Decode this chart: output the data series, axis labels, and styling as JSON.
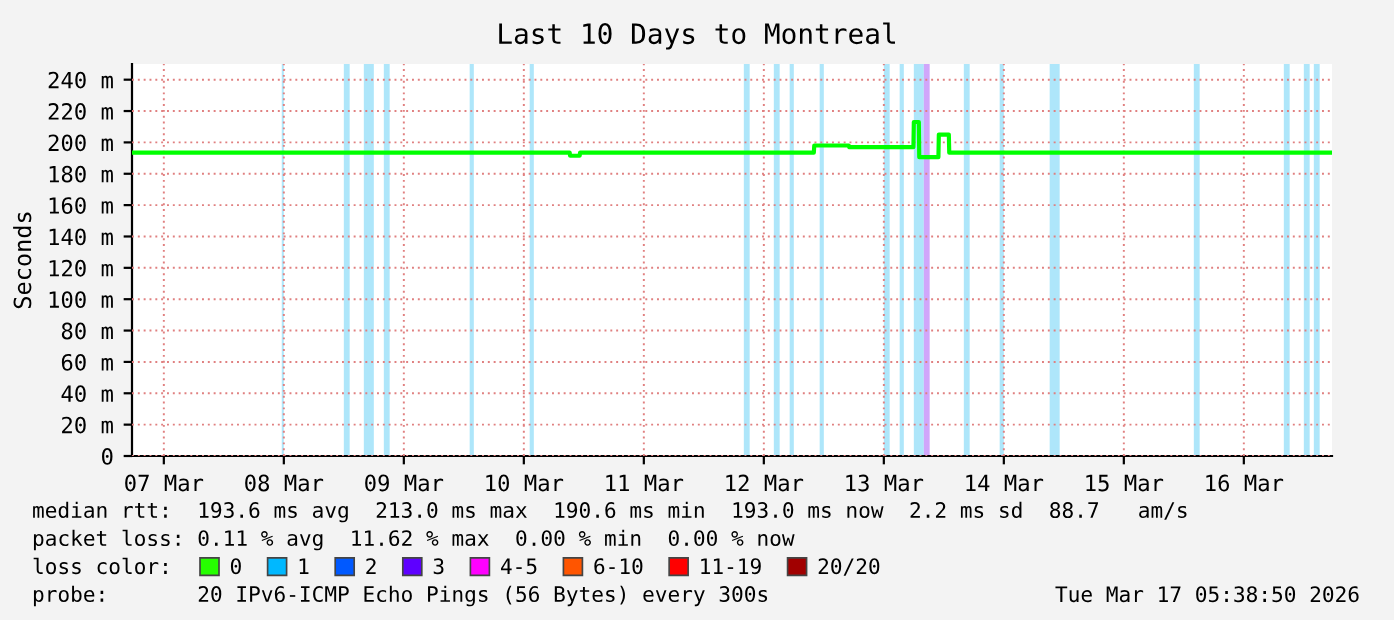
{
  "chart_data": {
    "type": "line",
    "title": "Last 10 Days to Montreal",
    "ylabel": "Seconds",
    "x": [
      "2026-03-07T05:40",
      "2026-03-10T21:10",
      "2026-03-10T21:15",
      "2026-03-10T23:10",
      "2026-03-10T23:15",
      "2026-03-12T22:00",
      "2026-03-12T22:05",
      "2026-03-13T05:00",
      "2026-03-13T05:05",
      "2026-03-13T17:55",
      "2026-03-13T18:00",
      "2026-03-13T19:00",
      "2026-03-13T19:05",
      "2026-03-13T22:55",
      "2026-03-13T23:00",
      "2026-03-14T01:00",
      "2026-03-14T01:05",
      "2026-03-17T05:35"
    ],
    "series": [
      {
        "color": "#00ff00",
        "values": [
          193.5,
          193.5,
          191.5,
          191.5,
          193.5,
          193.5,
          198,
          198,
          197,
          197,
          213,
          213,
          190.6,
          190.6,
          205,
          205,
          193.5,
          193.5
        ]
      },
      {
        "name": "0",
        "color": "#26ff00",
        "values": [
          null,
          null,
          null,
          null,
          null,
          null,
          null,
          null,
          null,
          null,
          null,
          null,
          null,
          null,
          null,
          null,
          null,
          null
        ]
      },
      {
        "name": "1",
        "color": "#00b8ff",
        "values": [
          null,
          null,
          null,
          null,
          null,
          null,
          null,
          null,
          null,
          null,
          null,
          null,
          null,
          null,
          null,
          null,
          null,
          null
        ]
      },
      {
        "name": "2",
        "color": "#0059ff",
        "values": [
          null,
          null,
          null,
          null,
          null,
          null,
          null,
          null,
          null,
          null,
          null,
          null,
          null,
          null,
          null,
          null,
          null,
          null
        ]
      },
      {
        "name": "3",
        "color": "#5e00ff",
        "values": [
          null,
          null,
          null,
          null,
          null,
          null,
          null,
          null,
          null,
          null,
          null,
          null,
          null,
          null,
          null,
          null,
          null,
          null
        ]
      },
      {
        "name": "4-5",
        "color": "#ff00ff",
        "values": [
          null,
          null,
          null,
          null,
          null,
          null,
          null,
          null,
          null,
          null,
          null,
          null,
          null,
          null,
          null,
          null,
          null,
          null
        ]
      },
      {
        "name": "6-10",
        "color": "#ff5500",
        "values": [
          null,
          null,
          null,
          null,
          null,
          null,
          null,
          null,
          null,
          null,
          null,
          null,
          null,
          null,
          null,
          null,
          null,
          null
        ]
      },
      {
        "name": "11-19",
        "color": "#ff0000",
        "values": [
          null,
          null,
          null,
          null,
          null,
          null,
          null,
          null,
          null,
          null,
          null,
          null,
          null,
          null,
          null,
          null,
          null,
          null
        ]
      },
      {
        "name": "20/20",
        "color": "#a10000",
        "values": [
          null,
          null,
          null,
          null,
          null,
          null,
          null,
          null,
          null,
          null,
          null,
          null,
          null,
          null,
          null,
          null,
          null,
          null
        ]
      }
    ],
    "xlim": [
      "2026-03-07T05:38",
      "2026-03-17T05:38"
    ],
    "xticks": [
      {
        "value": "2026-03-07T12:00",
        "label": "07 Mar"
      },
      {
        "value": "2026-03-08T12:00",
        "label": "08 Mar"
      },
      {
        "value": "2026-03-09T12:00",
        "label": "09 Mar"
      },
      {
        "value": "2026-03-10T12:00",
        "label": "10 Mar"
      },
      {
        "value": "2026-03-11T12:00",
        "label": "11 Mar"
      },
      {
        "value": "2026-03-12T12:00",
        "label": "12 Mar"
      },
      {
        "value": "2026-03-13T12:00",
        "label": "13 Mar"
      },
      {
        "value": "2026-03-14T12:00",
        "label": "14 Mar"
      },
      {
        "value": "2026-03-15T12:00",
        "label": "15 Mar"
      },
      {
        "value": "2026-03-16T12:00",
        "label": "16 Mar"
      }
    ],
    "ylim": [
      0,
      250
    ],
    "yticks": [
      0,
      {
        "value": 20,
        "label": "20 m"
      },
      {
        "value": 40,
        "label": "40 m"
      },
      {
        "value": 60,
        "label": "60 m"
      },
      {
        "value": 80,
        "label": "80 m"
      },
      {
        "value": 100,
        "label": "100 m"
      },
      {
        "value": 120,
        "label": "120 m"
      },
      {
        "value": 140,
        "label": "140 m"
      },
      {
        "value": 160,
        "label": "160 m"
      },
      {
        "value": 180,
        "label": "180 m"
      },
      {
        "value": 200,
        "label": "200 m"
      },
      {
        "value": 220,
        "label": "220 m"
      },
      {
        "value": 240,
        "label": "240 m"
      }
    ],
    "grid": true,
    "legend": "bottom",
    "bands": [
      {
        "axis": "x",
        "from": "2026-03-08T11:35",
        "to": "2026-03-08T12:00",
        "color": "#aee6fa"
      },
      {
        "axis": "x",
        "from": "2026-03-09T00:00",
        "to": "2026-03-09T01:10",
        "color": "#aee6fa"
      },
      {
        "axis": "x",
        "from": "2026-03-09T04:00",
        "to": "2026-03-09T06:00",
        "color": "#aee6fa"
      },
      {
        "axis": "x",
        "from": "2026-03-09T08:00",
        "to": "2026-03-09T09:10",
        "color": "#aee6fa"
      },
      {
        "axis": "x",
        "from": "2026-03-10T01:10",
        "to": "2026-03-10T02:00",
        "color": "#aee6fa"
      },
      {
        "axis": "x",
        "from": "2026-03-10T13:10",
        "to": "2026-03-10T14:00",
        "color": "#aee6fa"
      },
      {
        "axis": "x",
        "from": "2026-03-12T08:00",
        "to": "2026-03-12T09:10",
        "color": "#aee6fa"
      },
      {
        "axis": "x",
        "from": "2026-03-12T14:00",
        "to": "2026-03-12T15:10",
        "color": "#aee6fa"
      },
      {
        "axis": "x",
        "from": "2026-03-12T17:10",
        "to": "2026-03-12T18:00",
        "color": "#aee6fa"
      },
      {
        "axis": "x",
        "from": "2026-03-12T23:10",
        "to": "2026-03-13T00:00",
        "color": "#aee6fa"
      },
      {
        "axis": "x",
        "from": "2026-03-13T12:00",
        "to": "2026-03-13T13:10",
        "color": "#aee6fa"
      },
      {
        "axis": "x",
        "from": "2026-03-13T15:10",
        "to": "2026-03-13T16:00",
        "color": "#aee6fa"
      },
      {
        "axis": "x",
        "from": "2026-03-13T18:00",
        "to": "2026-03-13T20:00",
        "color": "#aee6fa"
      },
      {
        "axis": "x",
        "from": "2026-03-13T20:00",
        "to": "2026-03-13T21:10",
        "color": "#d0a6fa"
      },
      {
        "axis": "x",
        "from": "2026-03-14T04:00",
        "to": "2026-03-14T05:10",
        "color": "#aee6fa"
      },
      {
        "axis": "x",
        "from": "2026-03-14T11:10",
        "to": "2026-03-14T12:00",
        "color": "#aee6fa"
      },
      {
        "axis": "x",
        "from": "2026-03-14T21:10",
        "to": "2026-03-14T23:10",
        "color": "#aee6fa"
      },
      {
        "axis": "x",
        "from": "2026-03-16T02:00",
        "to": "2026-03-16T03:10",
        "color": "#aee6fa"
      },
      {
        "axis": "x",
        "from": "2026-03-16T20:00",
        "to": "2026-03-16T21:10",
        "color": "#aee6fa"
      },
      {
        "axis": "x",
        "from": "2026-03-17T00:00",
        "to": "2026-03-17T01:10",
        "color": "#aee6fa"
      },
      {
        "axis": "x",
        "from": "2026-03-17T02:00",
        "to": "2026-03-17T03:10",
        "color": "#aee6fa"
      }
    ],
    "annotations": [
      "median rtt:  193.6 ms avg  213.0 ms max  190.6 ms min  193.0 ms now  2.2 ms sd  88.7   am/s",
      "packet loss: 0.11 % avg  11.62 % max  0.00 % min  0.00 % now",
      "loss color:",
      "probe:       20 IPv6-ICMP Echo Pings (56 Bytes) every 300s",
      "Tue Mar 17 05:38:50 2026"
    ]
  }
}
